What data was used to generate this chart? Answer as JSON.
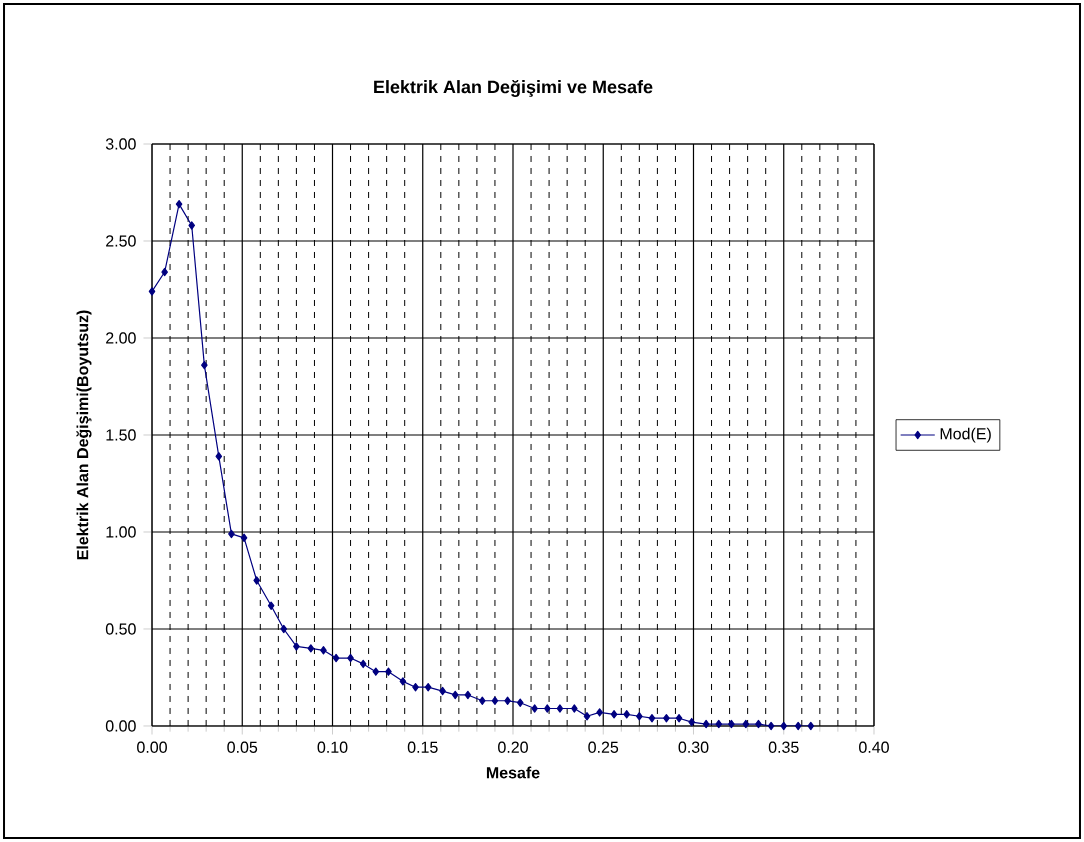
{
  "chart_data": {
    "type": "line",
    "title": "Elektrik Alan Değişimi ve Mesafe",
    "xlabel": "Mesafe",
    "ylabel": "Elektrik Alan Değişimi(Boyutsuz)",
    "xlim": [
      0,
      0.4
    ],
    "ylim": [
      0,
      3
    ],
    "xticks": [
      {
        "value": 0,
        "label": "0.00"
      },
      {
        "value": 0.05,
        "label": "0.05"
      },
      {
        "value": 0.1,
        "label": "0.10"
      },
      {
        "value": 0.15,
        "label": "0.15"
      },
      {
        "value": 0.2,
        "label": "0.20"
      },
      {
        "value": 0.25,
        "label": "0.25"
      },
      {
        "value": 0.3,
        "label": "0.30"
      },
      {
        "value": 0.35,
        "label": "0.35"
      },
      {
        "value": 0.4,
        "label": "0.40"
      }
    ],
    "yticks": [
      {
        "value": 0,
        "label": "0.00"
      },
      {
        "value": 0.5,
        "label": "0.50"
      },
      {
        "value": 1,
        "label": "1.00"
      },
      {
        "value": 1.5,
        "label": "1.50"
      },
      {
        "value": 2,
        "label": "2.00"
      },
      {
        "value": 2.5,
        "label": "2.50"
      },
      {
        "value": 3,
        "label": "3.00"
      }
    ],
    "grid": true,
    "legend": "right",
    "marker": "diamond",
    "line_style": "solid",
    "x": [
      0,
      0.007,
      0.015,
      0.022,
      0.029,
      0.037,
      0.044,
      0.051,
      0.058,
      0.066,
      0.073,
      0.08,
      0.088,
      0.095,
      0.102,
      0.11,
      0.117,
      0.124,
      0.131,
      0.139,
      0.146,
      0.153,
      0.161,
      0.168,
      0.175,
      0.183,
      0.19,
      0.197,
      0.204,
      0.212,
      0.219,
      0.226,
      0.234,
      0.241,
      0.248,
      0.256,
      0.263,
      0.27,
      0.277,
      0.285,
      0.292,
      0.299,
      0.307,
      0.314,
      0.321,
      0.329,
      0.336,
      0.343,
      0.35,
      0.358,
      0.365
    ],
    "series": [
      {
        "name": "Mod(E)",
        "color": "#000080",
        "values": [
          2.24,
          2.34,
          2.69,
          2.58,
          1.86,
          1.39,
          0.99,
          0.97,
          0.75,
          0.62,
          0.5,
          0.41,
          0.4,
          0.39,
          0.35,
          0.35,
          0.32,
          0.28,
          0.28,
          0.23,
          0.2,
          0.2,
          0.18,
          0.16,
          0.16,
          0.13,
          0.13,
          0.13,
          0.12,
          0.09,
          0.09,
          0.09,
          0.09,
          0.05,
          0.07,
          0.06,
          0.06,
          0.05,
          0.04,
          0.04,
          0.04,
          0.02,
          0.01,
          0.01,
          0.01,
          0.01,
          0.01,
          0.0,
          0.0,
          0.0,
          0.0
        ]
      }
    ]
  }
}
